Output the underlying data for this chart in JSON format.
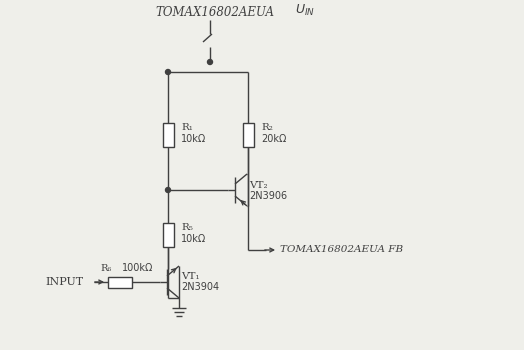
{
  "bg_color": "#efefea",
  "line_color": "#404040",
  "top_label": "TOMAX16802AEUA",
  "fb_label": "TOMAX16802AEUA FB",
  "R1_name": "R₁",
  "R1_val": "10kΩ",
  "R2_name": "R₂",
  "R2_val": "20kΩ",
  "R5_name": "R₅",
  "R5_val": "10kΩ",
  "R6_name": "R₆",
  "R6_val": "100kΩ",
  "VT1_name": "VT₁",
  "VT1_val": "2N3904",
  "VT2_name": "VT₂",
  "VT2_val": "2N3906",
  "input_label": "INPUT"
}
